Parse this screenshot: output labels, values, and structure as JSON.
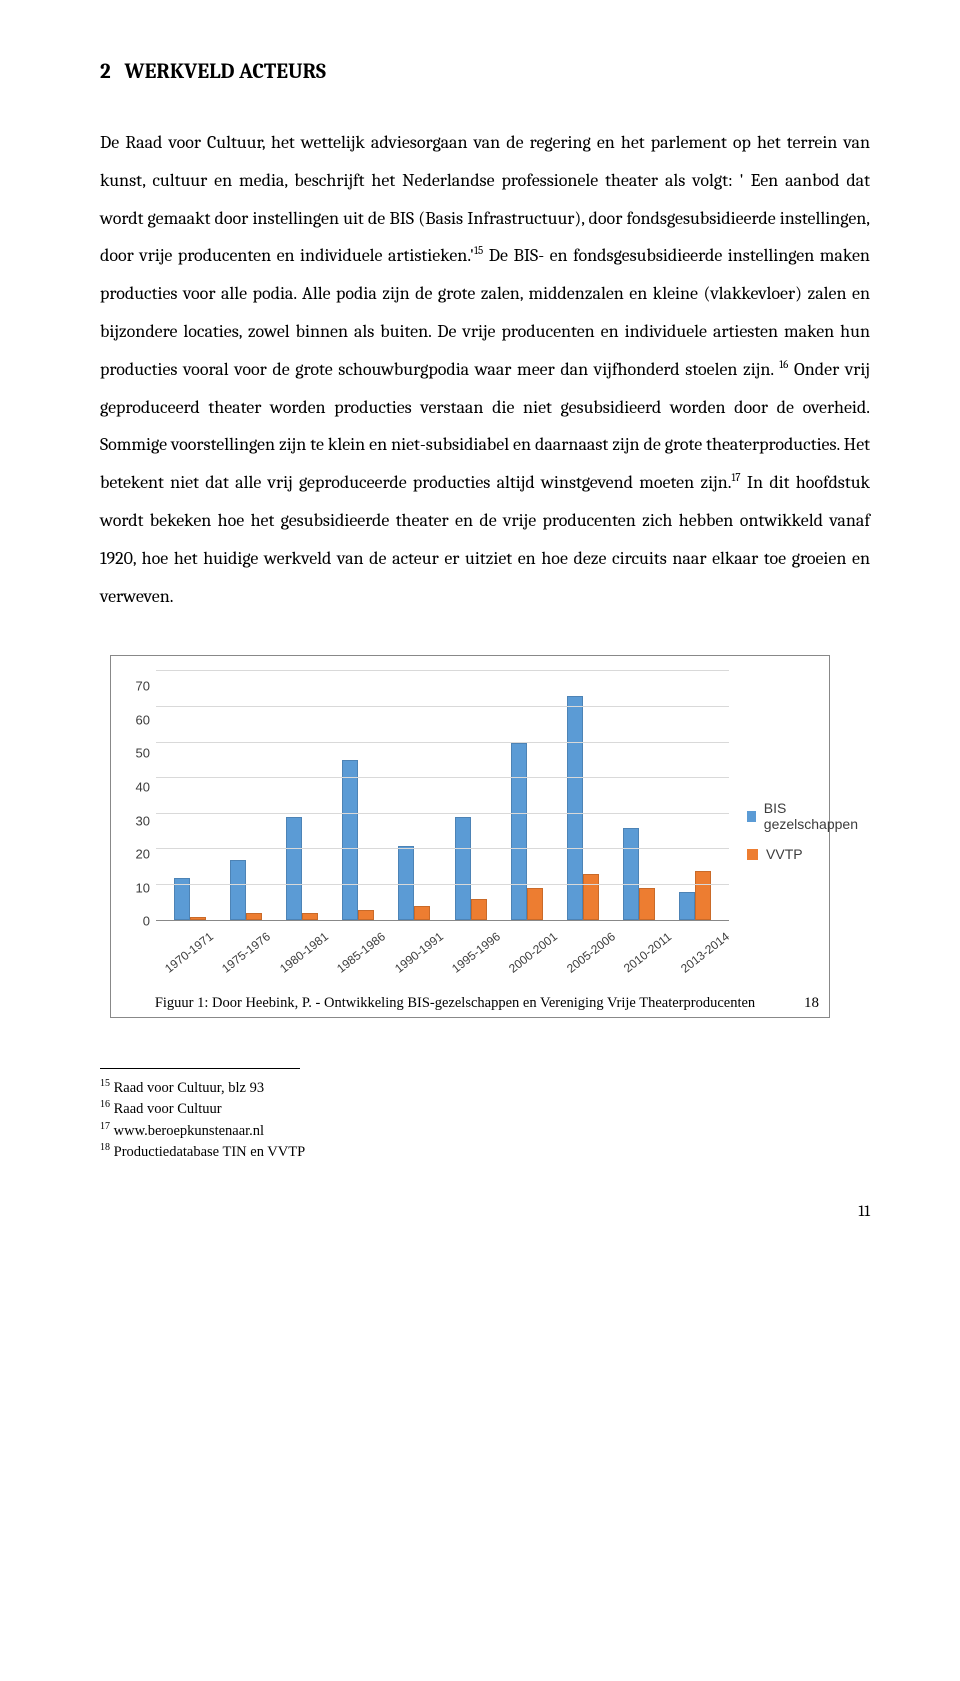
{
  "heading": {
    "num": "2",
    "title": "WERKVELD ACTEURS"
  },
  "body": {
    "p1": "De Raad voor Cultuur, het wettelijk adviesorgaan van de regering en het parlement op het terrein van kunst, cultuur en media,  beschrijft het Nederlandse professionele theater als volgt: ' Een aanbod dat wordt gemaakt door instellingen uit de BIS (Basis Infrastructuur), door fondsgesubsidieerde instellingen, door vrije producenten en individuele artistieken.'",
    "sup1": "15",
    "p2": " De BIS- en fondsgesubsidieerde instellingen maken producties voor alle podia. Alle podia zijn de grote zalen, middenzalen en kleine (vlakkevloer) zalen en bijzondere locaties, zowel binnen als buiten. De vrije producenten en individuele artiesten maken hun producties vooral voor de grote schouwburgpodia waar meer dan vijfhonderd stoelen zijn. ",
    "sup2": "16",
    "p3": " Onder vrij geproduceerd theater worden producties verstaan die niet gesubsidieerd worden door de overheid. Sommige voorstellingen zijn te klein en niet-subsidiabel en daarnaast zijn de grote theaterproducties. Het betekent niet dat alle vrij geproduceerde producties altijd winstgevend moeten zijn.",
    "sup3": "17",
    "p4": " In dit hoofdstuk wordt bekeken hoe het gesubsidieerde theater en de vrije producenten zich hebben ontwikkeld vanaf 1920, hoe het huidige werkveld van de acteur er uitziet en hoe deze circuits naar elkaar toe groeien en verweven."
  },
  "chart": {
    "type": "bar",
    "series1_label": "BIS gezelschappen",
    "series2_label": "VVTP",
    "series1_color": "#5b9bd5",
    "series2_color": "#ed7d31",
    "background_color": "#ffffff",
    "grid_color": "#d9d9d9",
    "axis_color": "#888888",
    "label_fontsize": 13,
    "legend_fontsize": 14,
    "ylim": [
      0,
      70
    ],
    "ytick_step": 10,
    "yticks": [
      "70",
      "60",
      "50",
      "40",
      "30",
      "20",
      "10",
      "0"
    ],
    "categories": [
      "1970-1971",
      "1975-1976",
      "1980-1981",
      "1985-1986",
      "1990-1991",
      "1995-1996",
      "2000-2001",
      "2005-2006",
      "2010-2011",
      "2013-2014"
    ],
    "series1_values": [
      12,
      17,
      29,
      45,
      21,
      29,
      50,
      63,
      26,
      8
    ],
    "series2_values": [
      1,
      2,
      2,
      3,
      4,
      6,
      9,
      13,
      9,
      14
    ]
  },
  "caption": {
    "text": "Figuur 1: Door Heebink, P. - Ontwikkeling BIS-gezelschappen en Vereniging Vrije Theaterproducenten",
    "num": "18"
  },
  "footnotes": {
    "f1_num": "15",
    "f1": " Raad voor Cultuur, blz 93",
    "f2_num": "16",
    "f2": " Raad voor Cultuur",
    "f3_num": "17",
    "f3": " www.beroepkunstenaar.nl",
    "f4_num": "18",
    "f4": " Productiedatabase TIN en VVTP"
  },
  "page_number": "11"
}
